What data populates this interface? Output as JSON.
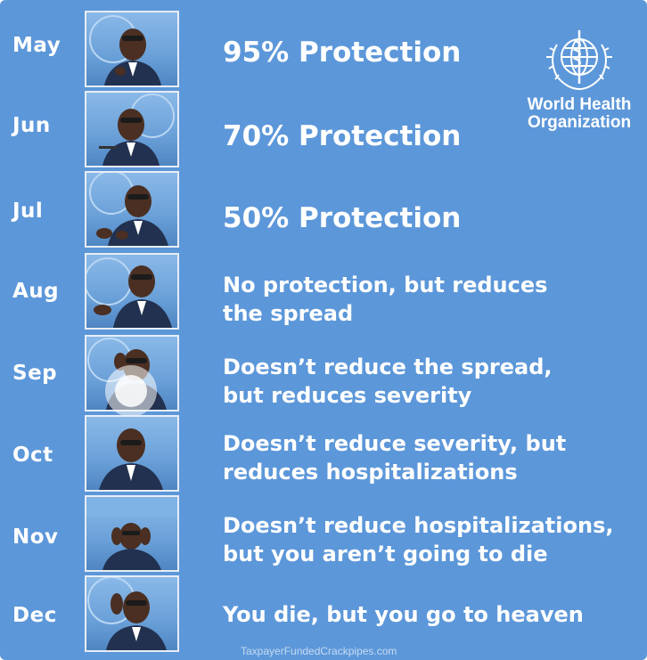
{
  "logo": {
    "name_line1": "World Health",
    "name_line2": "Organization",
    "icon": "who-emblem"
  },
  "rows": [
    {
      "month": "May",
      "lines": [
        "95% Protection"
      ]
    },
    {
      "month": "Jun",
      "lines": [
        "70% Protection"
      ]
    },
    {
      "month": "Jul",
      "lines": [
        "50% Protection"
      ]
    },
    {
      "month": "Aug",
      "lines": [
        "No protection, but reduces",
        "the spread"
      ]
    },
    {
      "month": "Sep",
      "lines": [
        "Doesn’t reduce the spread,",
        "but reduces severity"
      ]
    },
    {
      "month": "Oct",
      "lines": [
        "Doesn’t reduce severity, but",
        "reduces hospitalizations"
      ]
    },
    {
      "month": "Nov",
      "lines": [
        "Doesn’t reduce hospitalizations,",
        "but you aren’t going to die"
      ]
    },
    {
      "month": "Dec",
      "lines": [
        "You die, but you go to heaven"
      ]
    }
  ],
  "watermark": "TaxpayerFundedCrackpipes.com",
  "colors": {
    "background": "#5c97d9",
    "text": "#ffffff",
    "photo_border": "#e7edf6"
  }
}
